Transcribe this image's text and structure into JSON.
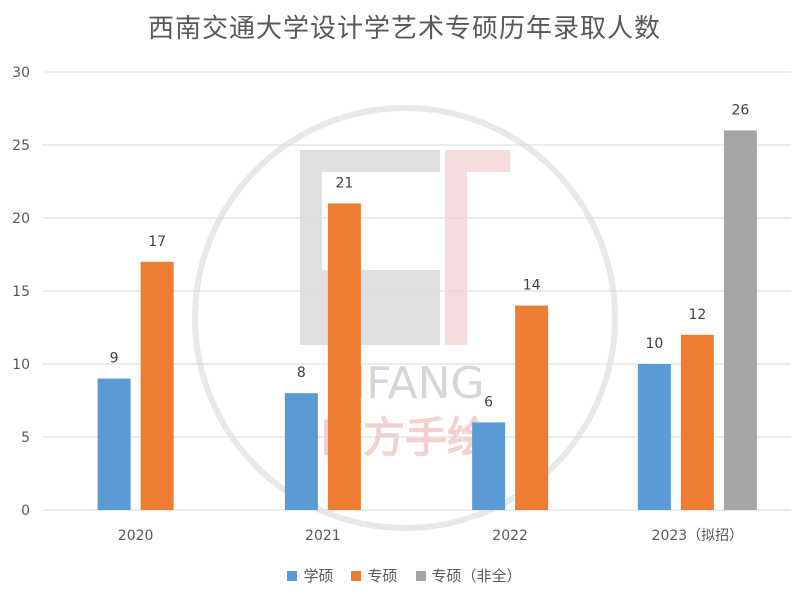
{
  "chart_data": {
    "type": "bar",
    "title": "西南交通大学设计学艺术专硕历年录取人数",
    "categories": [
      "2020",
      "2021",
      "2022",
      "2023（拟招）"
    ],
    "series": [
      {
        "name": "学硕",
        "color": "#5b9bd5",
        "values": [
          9,
          8,
          6,
          10
        ]
      },
      {
        "name": "专硕",
        "color": "#ed7d31",
        "values": [
          17,
          21,
          14,
          12
        ]
      },
      {
        "name": "专硕（非全）",
        "color": "#a5a5a5",
        "values": [
          null,
          null,
          null,
          26
        ]
      }
    ],
    "ylim": [
      0,
      30
    ],
    "yticks": [
      0,
      5,
      10,
      15,
      20,
      25,
      30
    ],
    "grid": true,
    "legend": "bottom",
    "xlabel": "",
    "ylabel": ""
  },
  "watermark": {
    "text": "SIFANG",
    "subtext": "四方手绘"
  }
}
